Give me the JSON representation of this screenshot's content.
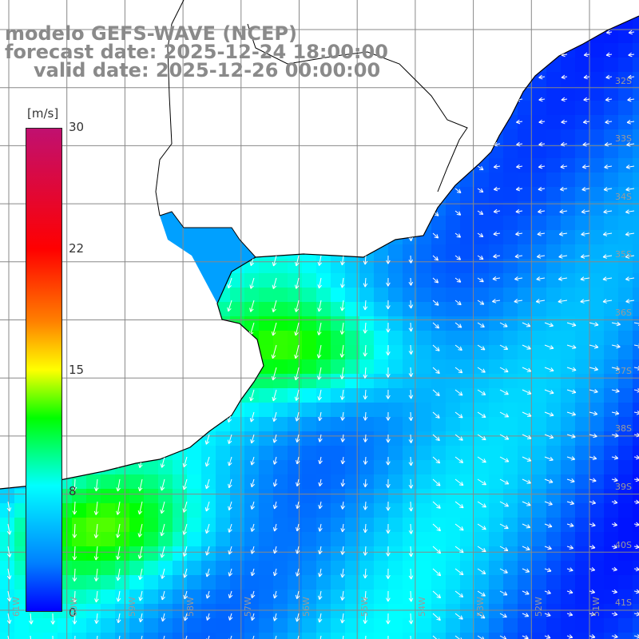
{
  "title": {
    "line1": "modelo GEFS-WAVE (NCEP)",
    "line2": "forecast date: 2025-12-24 18:00:00",
    "line3": "valid date: 2025-12-26 00:00:00"
  },
  "colorbar": {
    "unit": "[m/s]",
    "ticks": [
      "30",
      "22",
      "15",
      "8",
      "0"
    ],
    "tick_values": [
      30,
      22,
      15,
      8,
      0
    ],
    "colors": [
      "#0000ff",
      "#0080ff",
      "#00ffff",
      "#00ff00",
      "#ffff00",
      "#ff8000",
      "#ff0000",
      "#c01070"
    ]
  },
  "map": {
    "lat_labels": [
      "32S",
      "33S",
      "34S",
      "35S",
      "36S",
      "37S",
      "38S",
      "39S",
      "40S",
      "41S"
    ],
    "lon_labels": [
      "61W",
      "60W",
      "59W",
      "58W",
      "57W",
      "56W",
      "55W",
      "54W",
      "53W",
      "52W",
      "51W"
    ],
    "land_color": "#ffffff",
    "coast_color": "#000000",
    "arrow_color": "#ffffff"
  }
}
